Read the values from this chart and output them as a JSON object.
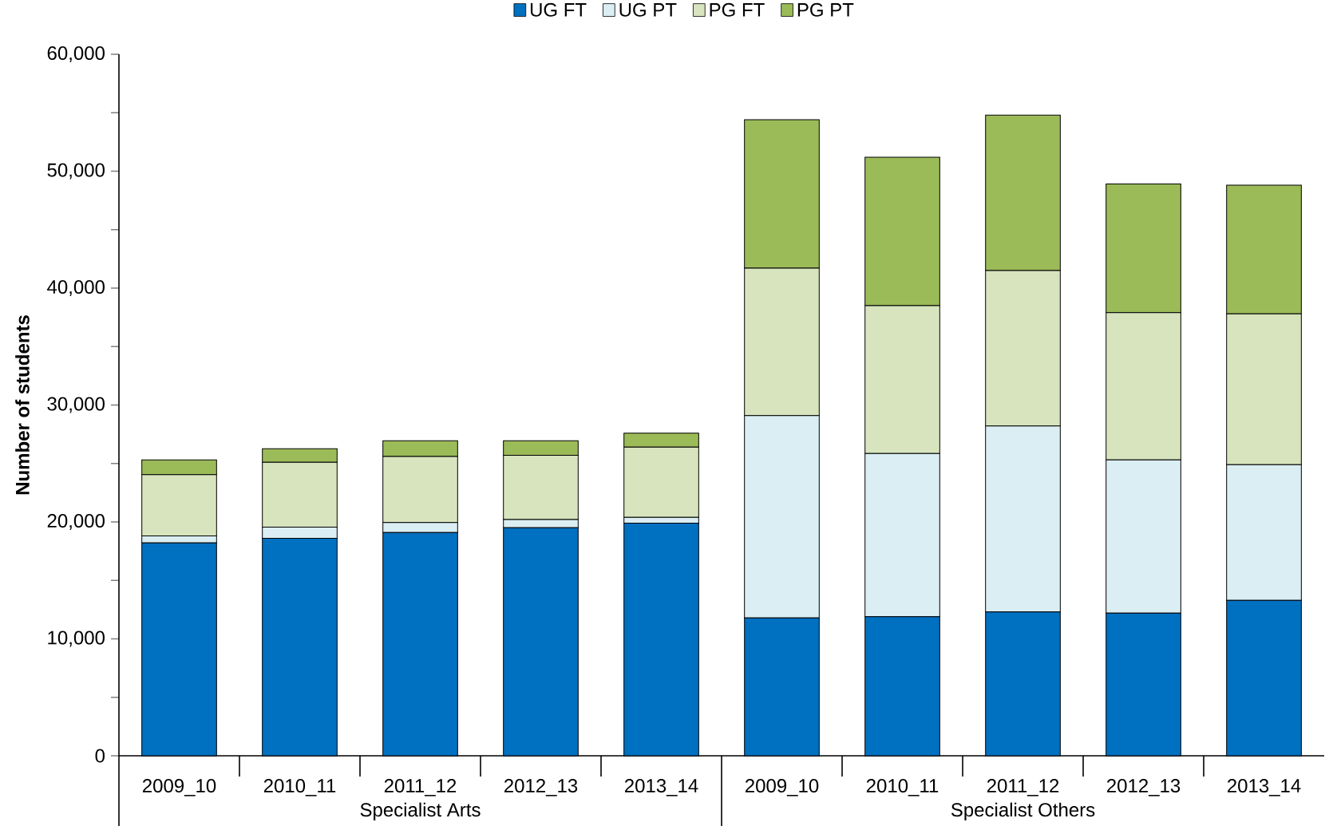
{
  "chart_data": {
    "type": "bar",
    "stacked": true,
    "ylabel": "Number of students",
    "categories": [
      "2009_10",
      "2010_11",
      "2011_12",
      "2012_13",
      "2013_14",
      "2009_10",
      "2010_11",
      "2011_12",
      "2012_13",
      "2013_14"
    ],
    "series": [
      {
        "name": "UG FT",
        "color": "#0070c0",
        "values": [
          18200,
          18600,
          19100,
          19500,
          19900,
          11800,
          11900,
          12300,
          12200,
          13300
        ]
      },
      {
        "name": "UG PT",
        "color": "#daeef3",
        "values": [
          600,
          960,
          850,
          700,
          500,
          17300,
          13950,
          15900,
          13100,
          11600
        ]
      },
      {
        "name": "PG FT",
        "color": "#d7e4bd",
        "values": [
          5250,
          5540,
          5650,
          5500,
          6000,
          12600,
          12650,
          13300,
          12600,
          12900
        ]
      },
      {
        "name": "PG PT",
        "color": "#9bbb59",
        "values": [
          1250,
          1160,
          1340,
          1250,
          1200,
          12700,
          12700,
          13300,
          11000,
          11000
        ]
      }
    ],
    "ylim": [
      0,
      60000
    ],
    "yticks": [
      0,
      {
        "value": 5000,
        "label": null
      },
      {
        "value": 10000,
        "label": "10,000"
      },
      {
        "value": 15000,
        "label": null
      },
      {
        "value": 20000,
        "label": "20,000"
      },
      {
        "value": 25000,
        "label": null
      },
      {
        "value": 30000,
        "label": "30,000"
      },
      {
        "value": 35000,
        "label": null
      },
      {
        "value": 40000,
        "label": "40,000"
      },
      {
        "value": 45000,
        "label": null
      },
      {
        "value": 50000,
        "label": "50,000"
      },
      {
        "value": 55000,
        "label": null
      },
      {
        "value": 60000,
        "label": "60,000"
      }
    ],
    "annotations": [
      "Specialist Arts",
      "Specialist Others"
    ],
    "legend": "top"
  }
}
